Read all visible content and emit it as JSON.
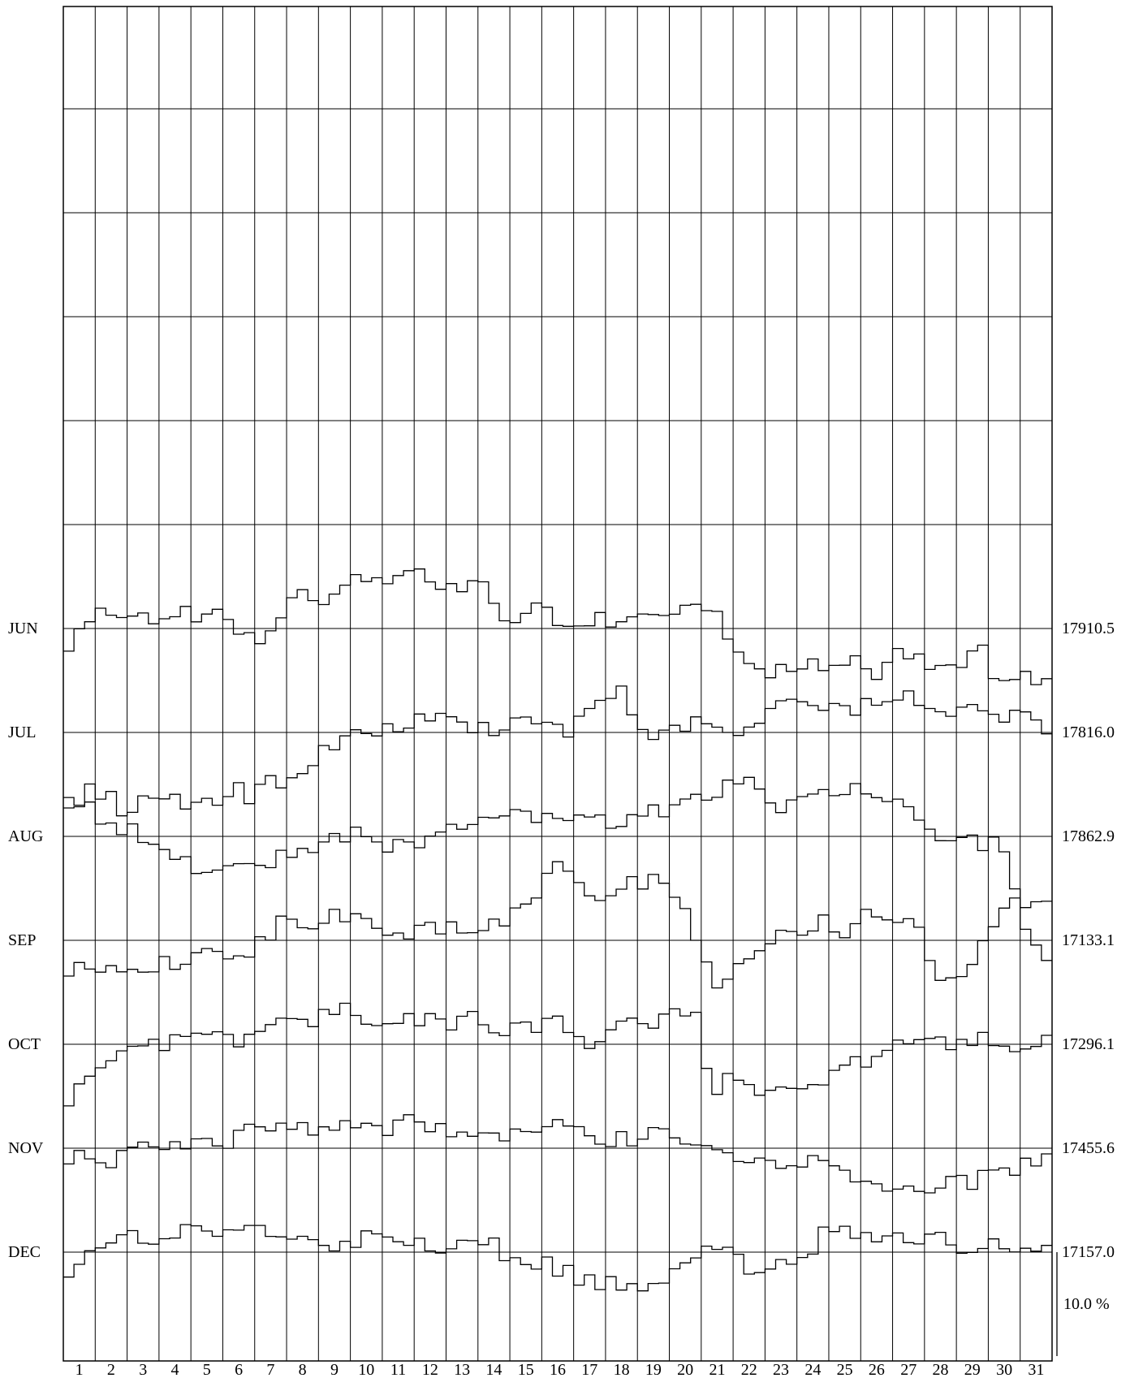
{
  "chart_data": {
    "type": "line",
    "title": "",
    "xlabel": "",
    "ylabel": "",
    "days": [
      "1",
      "2",
      "3",
      "4",
      "5",
      "6",
      "7",
      "8",
      "9",
      "10",
      "11",
      "12",
      "13",
      "14",
      "15",
      "16",
      "17",
      "18",
      "19",
      "20",
      "21",
      "22",
      "23",
      "24",
      "25",
      "26",
      "27",
      "28",
      "29",
      "30",
      "31"
    ],
    "scale_label": "10.0 %",
    "grid": true,
    "series": [
      {
        "name": "JUN",
        "base": "17910.5",
        "gap": [
          [
            5.6,
            5.6
          ]
        ],
        "values": [
          -1.3,
          0.3,
          0.8,
          1.1,
          1.4,
          1.6,
          2.0,
          1.1,
          0.9,
          1.1,
          1.6,
          1.3,
          0.8,
          1.1,
          1.0,
          0.6,
          0.0,
          -0.4,
          -0.8,
          -0.2,
          1.6,
          3.0,
          3.2,
          3.3,
          2.9,
          3.8,
          4.2,
          4.4,
          4.8,
          5.3,
          4.6,
          5.0,
          4.9,
          5.6,
          4.8,
          4.6,
          4.0,
          3.7,
          3.8,
          3.9,
          1.8,
          0.8,
          0.1,
          1.2,
          1.6,
          1.7,
          0.4,
          -0.2,
          0.2,
          0.2,
          0.9,
          0.1,
          0.8,
          1.6,
          1.7,
          1.4,
          1.5,
          1.0,
          1.4,
          1.9,
          2.0,
          1.5,
          -0.3,
          -2.6,
          -3.4,
          -4.0,
          -4.6,
          -4.3,
          -4.2,
          -3.0,
          -3.6,
          -3.2,
          -4.3,
          -3.8,
          -3.0,
          -3.2,
          -4.3,
          -3.8,
          -2.3,
          -2.8,
          -2.5,
          -4.3,
          -3.7,
          -3.6,
          -3.6,
          -2.8,
          -1.6,
          -4.2,
          -4.7,
          -4.9,
          -4.6,
          -4.5,
          -4.2
        ]
      },
      {
        "name": "JUL",
        "base": "17816.0",
        "gap": [
          [
            5.6,
            5.6
          ]
        ],
        "values": [
          -6.4,
          -7.8,
          -5.2,
          -5.6,
          -6.4,
          -7.4,
          -6.8,
          -6.9,
          -7.2,
          -6.6,
          -6.5,
          -7.5,
          -6.4,
          -6.0,
          -6.8,
          -5.7,
          -5.3,
          -6.1,
          -5.8,
          -4.8,
          -4.5,
          -4.6,
          -3.9,
          -3.0,
          -2.3,
          -1.6,
          -0.2,
          0.1,
          -0.6,
          -0.6,
          0.3,
          0.5,
          0.6,
          0.9,
          1.0,
          1.2,
          1.5,
          0.9,
          1.2,
          0.4,
          0.5,
          0.2,
          0.4,
          0.9,
          1.2,
          0.8,
          0.6,
          0.7,
          0.3,
          0.7,
          1.5,
          2.6,
          3.6,
          4.5,
          1.2,
          0.7,
          0.0,
          -0.2,
          0.2,
          0.6,
          0.4,
          1.7,
          0.7,
          0.1,
          -0.3,
          0.3,
          1.0,
          2.1,
          2.8,
          2.9,
          3.5,
          4.0,
          2.8,
          2.1,
          2.9,
          2.5,
          1.8,
          3.0,
          2.4,
          2.6,
          2.8,
          3.4,
          2.8,
          2.9,
          2.7,
          2.0,
          2.1,
          1.9,
          1.5,
          1.0,
          0.4,
          2.0,
          1.8,
          1.6,
          0.6
        ]
      },
      {
        "name": "AUG",
        "base": "17862.9",
        "gap": [
          [
            5.6,
            5.6
          ]
        ],
        "values": [
          4.6,
          3.3,
          2.7,
          1.8,
          1.4,
          1.1,
          0.4,
          0.1,
          -0.7,
          -1.6,
          -2.3,
          -2.6,
          -2.8,
          -3.0,
          -2.9,
          -3.4,
          -2.9,
          -2.8,
          -2.6,
          -2.4,
          -2.2,
          -2.1,
          -1.8,
          -1.3,
          -1.0,
          -0.6,
          -0.3,
          0.1,
          0.6,
          0.5,
          -0.4,
          -0.8,
          -1.0,
          -0.9,
          -0.8,
          -0.3,
          0.6,
          0.5,
          0.7,
          1.2,
          1.5,
          1.4,
          2.3,
          2.0,
          1.9,
          2.3,
          2.0,
          1.6,
          1.3,
          1.9,
          2.5,
          2.1,
          1.8,
          1.6,
          1.9,
          2.4,
          2.2,
          2.5,
          2.8,
          2.6,
          3.6,
          4.9,
          4.3,
          3.9,
          4.6,
          5.8,
          6.0,
          4.1,
          3.4,
          2.6,
          3.3,
          4.5,
          4.6,
          4.3,
          4.1,
          4.4,
          4.6,
          4.3,
          3.2,
          3.0,
          3.1,
          3.3,
          2.8,
          2.0,
          -0.5,
          -0.6,
          -1.1,
          -0.9,
          -0.7,
          -0.6,
          -0.2,
          -1.2,
          -6.0,
          -9.0,
          -10.6,
          -11.1
        ]
      },
      {
        "name": "SEP",
        "base": "17133.1",
        "gap": [
          [
            5.6,
            5.6
          ]
        ],
        "values": [
          -2.6,
          -2.8,
          -2.0,
          -2.6,
          -3.2,
          -3.9,
          -3.7,
          -3.1,
          -2.7,
          -2.4,
          -2.6,
          -2.0,
          -2.2,
          -1.8,
          -1.5,
          -1.2,
          -1.3,
          -1.1,
          -0.6,
          -0.3,
          0.5,
          2.4,
          2.1,
          1.9,
          1.4,
          2.2,
          2.8,
          2.6,
          2.4,
          1.8,
          1.2,
          0.5,
          0.6,
          0.8,
          1.1,
          1.2,
          1.4,
          1.0,
          0.9,
          0.4,
          0.5,
          1.2,
          1.5,
          2.1,
          3.0,
          3.2,
          4.9,
          7.3,
          6.9,
          5.4,
          4.6,
          3.6,
          4.1,
          3.7,
          5.9,
          5.0,
          5.3,
          6.6,
          5.6,
          3.4,
          2.3,
          0.3,
          -2.9,
          -4.3,
          -3.5,
          -2.8,
          -1.6,
          -0.9,
          -0.4,
          0.1,
          0.9,
          1.2,
          0.8,
          1.5,
          1.9,
          1.1,
          1.0,
          2.9,
          3.4,
          2.2,
          1.4,
          1.3,
          1.4,
          0.1,
          -2.1,
          -3.6,
          -3.4,
          -2.9,
          -1.1,
          0.5,
          1.8,
          2.8,
          3.4,
          3.6,
          3.1,
          2.9
        ]
      },
      {
        "name": "OCT",
        "base": "17296.1",
        "gap": [
          [
            5.6,
            5.6
          ]
        ],
        "values": [
          -5.1,
          -3.6,
          -2.8,
          -2.1,
          -1.6,
          -1.4,
          -1.0,
          -0.6,
          -0.4,
          -0.1,
          0.1,
          0.0,
          0.4,
          0.6,
          0.3,
          0.7,
          0.4,
          0.7,
          0.9,
          1.4,
          1.6,
          2.4,
          2.8,
          2.2,
          2.0,
          2.6,
          3.0,
          3.3,
          2.8,
          2.7,
          1.7,
          1.3,
          2.5,
          2.9,
          2.6,
          2.2,
          1.9,
          2.1,
          2.8,
          2.6,
          1.8,
          1.6,
          1.3,
          1.1,
          1.6,
          1.8,
          1.9,
          2.2,
          1.9,
          1.6,
          0.8,
          0.2,
          0.8,
          1.7,
          2.1,
          2.5,
          2.2,
          2.1,
          2.7,
          3.0,
          3.4,
          3.2,
          -3.0,
          -4.4,
          -3.3,
          -3.4,
          -3.5,
          -4.0,
          -4.5,
          -4.2,
          -4.2,
          -3.6,
          -4.3,
          -3.7,
          -3.0,
          -2.9,
          -2.2,
          -1.8,
          -1.4,
          -1.0,
          -0.3,
          0.3,
          0.2,
          0.2,
          0.4,
          0.6,
          0.2,
          0.5,
          0.6,
          0.9,
          0.6,
          0.3,
          0.1,
          0.3,
          0.5,
          0.1
        ]
      },
      {
        "name": "NOV",
        "base": "17455.6",
        "gap": [
          [
            5.6,
            5.6
          ]
        ],
        "values": [
          -0.7,
          -0.9,
          -1.1,
          -1.4,
          -1.0,
          -0.8,
          -0.6,
          -0.3,
          -0.1,
          0.0,
          0.4,
          0.2,
          0.5,
          0.8,
          1.0,
          0.6,
          0.2,
          3.2,
          2.7,
          2.8,
          2.2,
          2.3,
          1.8,
          1.5,
          1.6,
          1.8,
          2.4,
          2.1,
          2.4,
          2.4,
          1.8,
          1.6,
          2.2,
          2.5,
          2.7,
          2.2,
          2.5,
          1.6,
          1.6,
          1.8,
          1.4,
          1.2,
          1.2,
          1.0,
          1.1,
          1.3,
          1.6,
          1.9,
          2.1,
          1.7,
          1.4,
          1.0,
          0.6,
          0.8,
          0.8,
          1.1,
          1.4,
          1.1,
          0.5,
          0.6,
          0.2,
          0.0,
          0.4,
          0.5,
          -0.6,
          -0.8,
          -1.2,
          -1.2,
          -1.3,
          -1.5,
          -1.4,
          -1.4,
          -1.2,
          -1.4,
          -1.8,
          -2.8,
          -3.6,
          -4.2,
          -4.0,
          -4.1,
          -4.4,
          -4.3,
          -3.9,
          -3.5,
          -3.0,
          -3.0,
          -3.2,
          -3.4,
          -2.9,
          -2.6,
          -2.2,
          -2.0,
          -1.7,
          -1.5,
          -1.2
        ]
      },
      {
        "name": "DEC",
        "base": "17157.0",
        "gap": [
          [
            5.6,
            5.6
          ]
        ],
        "values": [
          -1.6,
          -1.0,
          -0.4,
          0.2,
          0.8,
          1.2,
          1.5,
          1.4,
          1.2,
          1.0,
          1.5,
          2.0,
          2.4,
          2.6,
          2.0,
          1.5,
          1.9,
          2.4,
          2.3,
          2.1,
          1.7,
          1.4,
          1.6,
          1.8,
          1.3,
          0.7,
          0.9,
          0.9,
          1.0,
          1.3,
          1.5,
          1.2,
          0.9,
          0.9,
          0.8,
          0.6,
          0.5,
          0.8,
          1.1,
          1.4,
          0.9,
          0.6,
          0.2,
          -1.1,
          -2.0,
          -1.4,
          -0.6,
          -1.4,
          -1.7,
          -2.2,
          -2.8,
          -2.6,
          -2.9,
          -3.4,
          -3.1,
          -3.6,
          -3.4,
          -3.0,
          -2.6,
          -2.0,
          -1.4,
          -1.0,
          0.8,
          1.0,
          0.3,
          -0.8,
          -1.6,
          -1.5,
          -1.8,
          -1.4,
          -1.0,
          -0.4,
          0.4,
          1.4,
          2.5,
          2.7,
          2.4,
          1.6,
          1.4,
          1.7,
          1.8,
          1.2,
          1.1,
          1.5,
          1.6,
          1.8,
          0.8,
          0.6,
          0.4,
          0.9,
          1.3,
          0.9,
          0.3,
          -0.1,
          -0.2,
          0.1
        ]
      }
    ]
  }
}
